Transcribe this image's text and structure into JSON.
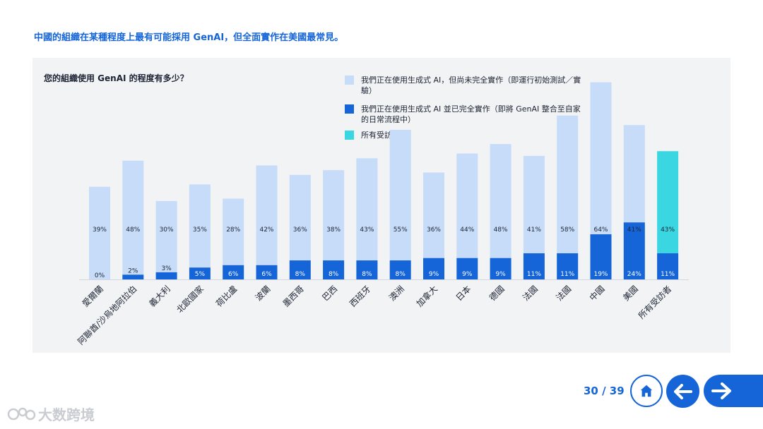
{
  "headline": "中國的組織在某種程度上最有可能採用 GenAI，但全面實作在美國最常見。",
  "question": "您的組織使用 GenAI 的程度有多少？",
  "colors": {
    "accent": "#1565d8",
    "partial": "#c6dcf8",
    "full": "#1565d8",
    "all": "#3ad7e3"
  },
  "chart_data": {
    "type": "bar",
    "stacked": true,
    "categories": [
      "愛爾蘭",
      "阿聯酋/沙烏地阿拉伯",
      "義大利",
      "北歐國家",
      "荷比盧",
      "波蘭",
      "墨西哥",
      "巴西",
      "西班牙",
      "澳洲",
      "加拿大",
      "日本",
      "德國",
      "法國",
      "法國",
      "中國",
      "美國",
      "所有受訪者"
    ],
    "series": [
      {
        "name": "我們正在使用生成式 AI 並已完全實作（即將 GenAI 整合至自家的日常流程中）",
        "values": [
          0,
          2,
          3,
          5,
          6,
          6,
          8,
          8,
          8,
          8,
          9,
          9,
          9,
          11,
          11,
          19,
          24,
          11
        ]
      },
      {
        "name": "我們正在使用生成式 AI，但尚未完全實作（即運行初始測試／實驗）",
        "values": [
          39,
          48,
          30,
          35,
          28,
          42,
          36,
          38,
          43,
          55,
          36,
          44,
          48,
          41,
          58,
          64,
          41,
          43
        ]
      }
    ],
    "highlight_category": "所有受訪者",
    "highlight_label": "所有受訪者",
    "value_suffix": "%",
    "ylim": [
      0,
      82
    ],
    "grid": false,
    "legend_position": "top-right"
  },
  "legend": [
    {
      "text": "我們正在使用生成式 AI，但尚未完全實作（即運行初始測試／實驗）",
      "color": "#c6dcf8"
    },
    {
      "text": "我們正在使用生成式 AI 並已完全實作（即將 GenAI 整合至自家的日常流程中）",
      "color": "#1565d8"
    },
    {
      "text": "所有受訪者",
      "color": "#3ad7e3"
    }
  ],
  "pager": {
    "current": "30",
    "total": "39",
    "text": "30 / 39"
  },
  "icons": {
    "home": "home-icon",
    "back": "arrow-left-icon",
    "next": "arrow-right-icon"
  },
  "watermark": "大数跨境"
}
